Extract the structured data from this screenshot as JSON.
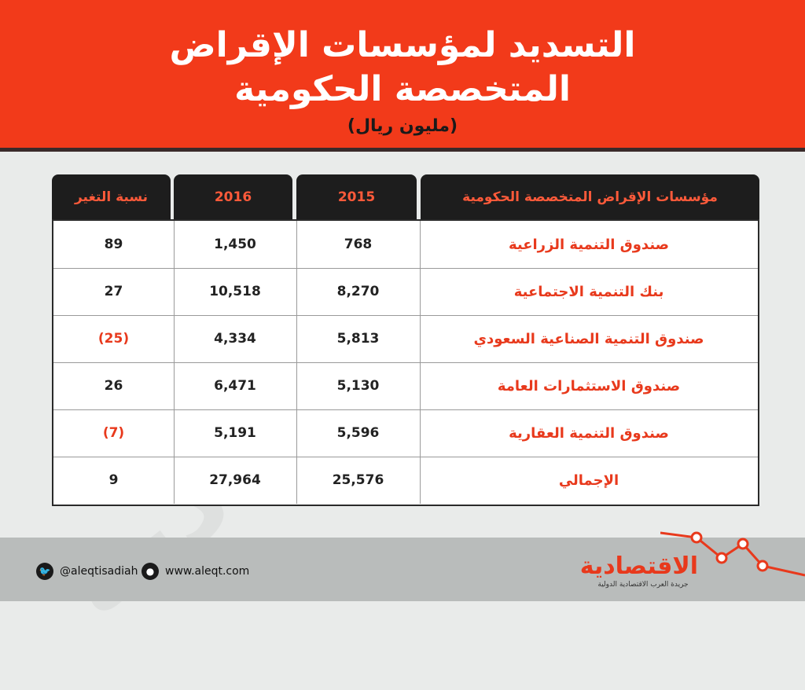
{
  "header": {
    "title_line1": "التسديد لمؤسسات الإقراض",
    "title_line2": "المتخصصة الحكومية",
    "subtitle": "(مليون ريال)"
  },
  "chart_data": {
    "type": "table",
    "columns": [
      "مؤسسات الإقراض المتخصصة الحكومية",
      "2015",
      "2016",
      "نسبة التغير"
    ],
    "rows": [
      {
        "name": "صندوق التنمية الزراعية",
        "y2015": "768",
        "y2016": "1,450",
        "change": "89",
        "negative": false
      },
      {
        "name": "بنك التنمية الاجتماعية",
        "y2015": "8,270",
        "y2016": "10,518",
        "change": "27",
        "negative": false
      },
      {
        "name": "صندوق التنمية الصناعية السعودي",
        "y2015": "5,813",
        "y2016": "4,334",
        "change": "(25)",
        "negative": true
      },
      {
        "name": "صندوق الاستثمارات العامة",
        "y2015": "5,130",
        "y2016": "6,471",
        "change": "26",
        "negative": false
      },
      {
        "name": "صندوق التنمية العقارية",
        "y2015": "5,596",
        "y2016": "5,191",
        "change": "(7)",
        "negative": true
      },
      {
        "name": "الإجمالي",
        "y2015": "25,576",
        "y2016": "27,964",
        "change": "9",
        "negative": false
      }
    ]
  },
  "watermark": "الاقتصادية",
  "footer": {
    "twitter": "@aleqtisadiah",
    "website": "www.aleqt.com",
    "logo": "الاقتصادية",
    "logo_tagline": "جريدة العرب الاقتصادية الدولية",
    "accent_color": "#e8391c"
  }
}
